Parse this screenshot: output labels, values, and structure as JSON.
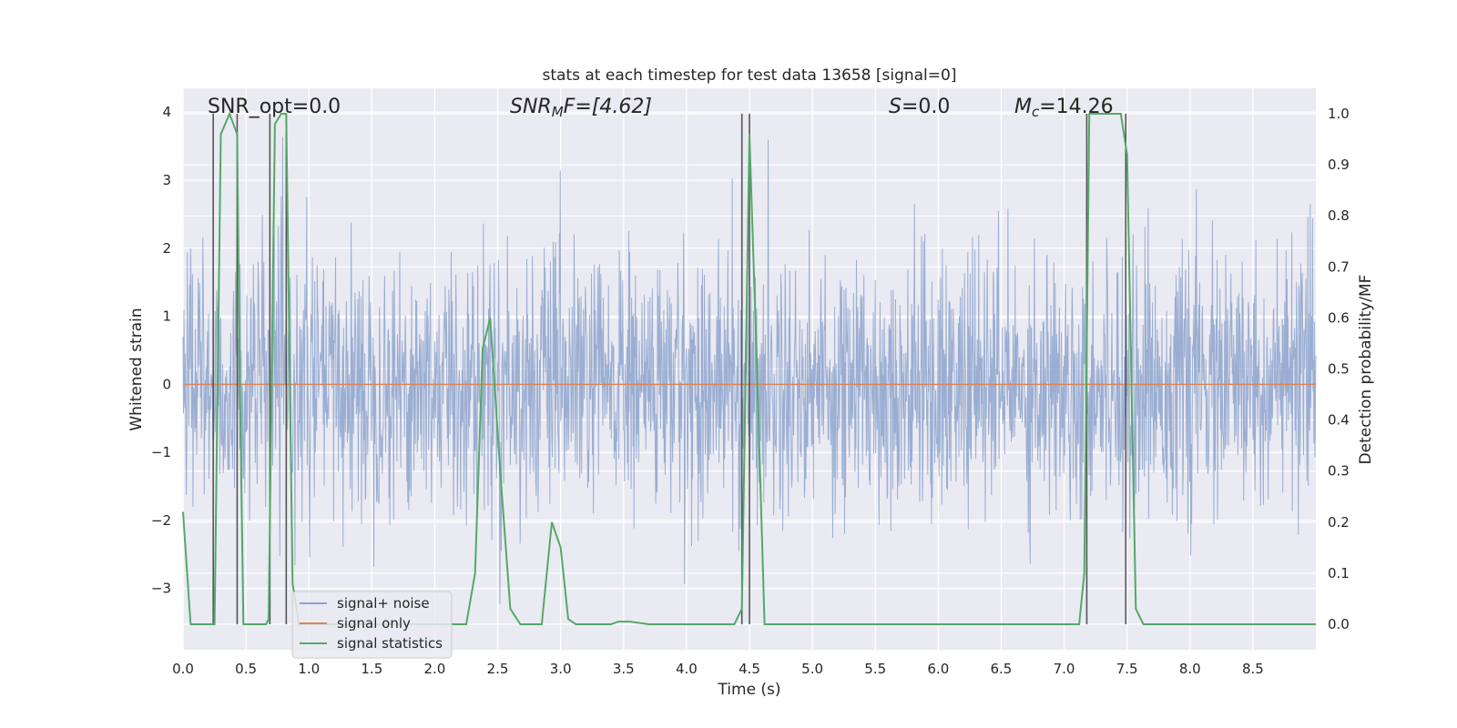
{
  "chart_data": {
    "type": "line",
    "title": "stats at each timestep for test data 13658 [signal=0]",
    "xlabel": "Time (s)",
    "ylabel_left": "Whitened strain",
    "ylabel_right": "Detection probability/MF",
    "xlim": [
      0.0,
      9.0
    ],
    "ylim_left": [
      -3.9,
      4.35
    ],
    "ylim_right": [
      -0.05,
      1.05
    ],
    "x_ticks": [
      "0.0",
      "0.5",
      "1.0",
      "1.5",
      "2.0",
      "2.5",
      "3.0",
      "3.5",
      "4.0",
      "4.5",
      "5.0",
      "5.5",
      "6.0",
      "6.5",
      "7.0",
      "7.5",
      "8.0",
      "8.5"
    ],
    "y_left_ticks": [
      "4",
      "3",
      "2",
      "1",
      "0",
      "−1",
      "−2",
      "−3"
    ],
    "y_right_ticks": [
      "1.0",
      "0.9",
      "0.8",
      "0.7",
      "0.6",
      "0.5",
      "0.4",
      "0.3",
      "0.2",
      "0.1",
      "0.0"
    ],
    "grid": true,
    "legend_position": "lower-left",
    "annotations": {
      "snr_opt": "SNR_opt=0.0",
      "snr_mf_label": "SNR",
      "snr_mf_sub": "M",
      "snr_mf_rest": "F=[4.62]",
      "s_label": "S",
      "s_rest": "=0.0",
      "mc_label": "M",
      "mc_sub": "c",
      "mc_rest": "=14.26"
    },
    "colors": {
      "noise": "#8da3cc",
      "signal_only": "#dd8452",
      "statistics": "#55a868",
      "vlines": "#555555",
      "background": "#eaeaf2"
    },
    "series": [
      {
        "name": "signal+ noise",
        "axis": "left",
        "style": "dense noise, approx. std 0.95, range about −3.6 to 4.0",
        "noise_std": 0.95,
        "duration_s": 9.0
      },
      {
        "name": "signal only",
        "axis": "left",
        "x": [
          0.0,
          9.0
        ],
        "values": [
          0.0,
          0.0
        ]
      },
      {
        "name": "signal statistics",
        "axis": "right",
        "x": [
          0.0,
          0.06,
          0.25,
          0.3,
          0.37,
          0.43,
          0.45,
          0.48,
          0.5,
          0.66,
          0.68,
          0.73,
          0.78,
          0.82,
          0.87,
          0.92,
          1.0,
          1.1,
          1.2,
          1.5,
          2.0,
          2.25,
          2.32,
          2.38,
          2.44,
          2.52,
          2.6,
          2.68,
          2.85,
          2.93,
          3.0,
          3.06,
          3.12,
          3.3,
          3.4,
          3.46,
          3.55,
          3.7,
          4.0,
          4.3,
          4.38,
          4.44,
          4.5,
          4.56,
          4.62,
          4.68,
          5.0,
          6.0,
          7.0,
          7.12,
          7.16,
          7.2,
          7.25,
          7.45,
          7.5,
          7.57,
          7.63,
          8.0,
          9.0
        ],
        "values": [
          0.22,
          0.0,
          0.0,
          0.96,
          1.0,
          0.96,
          0.5,
          0.0,
          0.0,
          0.0,
          0.01,
          0.98,
          1.0,
          1.0,
          0.08,
          0.0,
          0.0,
          0.0,
          0.0,
          0.0,
          0.0,
          0.0,
          0.1,
          0.54,
          0.6,
          0.3,
          0.03,
          0.0,
          0.0,
          0.2,
          0.15,
          0.01,
          0.0,
          0.0,
          0.0,
          0.005,
          0.005,
          0.0,
          0.0,
          0.0,
          0.0,
          0.03,
          0.96,
          0.5,
          0.0,
          0.0,
          0.0,
          0.0,
          0.0,
          0.0,
          0.1,
          1.0,
          1.0,
          1.0,
          0.92,
          0.03,
          0.0,
          0.0,
          0.0
        ]
      }
    ],
    "vlines_x": [
      0.24,
      0.43,
      0.69,
      0.82,
      4.44,
      4.5,
      7.18,
      7.49
    ],
    "legend": [
      "signal+ noise",
      "signal only",
      "signal statistics"
    ]
  }
}
